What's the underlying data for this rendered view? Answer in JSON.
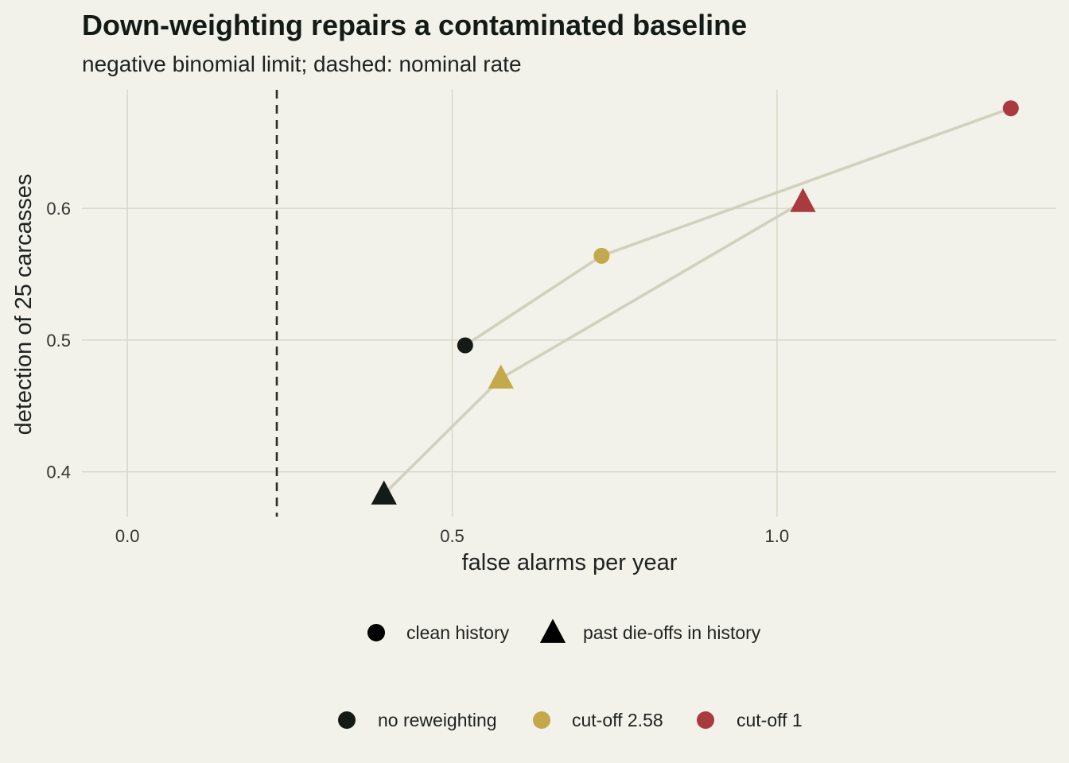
{
  "chart_data": {
    "type": "scatter",
    "title": "Down-weighting repairs a contaminated baseline",
    "subtitle": "negative binomial limit; dashed: nominal rate",
    "xlabel": "false alarms per year",
    "ylabel": "detection of 25 carcasses",
    "xlim": [
      -0.07,
      1.43
    ],
    "ylim": [
      0.366,
      0.69
    ],
    "x_ticks": [
      0.0,
      0.5,
      1.0
    ],
    "x_tick_labels": [
      "0.0",
      "0.5",
      "1.0"
    ],
    "y_ticks": [
      0.4,
      0.5,
      0.6
    ],
    "y_tick_labels": [
      "0.4",
      "0.5",
      "0.6"
    ],
    "grid": true,
    "reference_line": {
      "orientation": "vertical",
      "x": 0.23,
      "style": "dashed"
    },
    "series": [
      {
        "name": "clean history",
        "shape": "circle",
        "points": [
          {
            "x": 0.52,
            "y": 0.496,
            "weighting": "no reweighting"
          },
          {
            "x": 0.73,
            "y": 0.564,
            "weighting": "cut-off 2.58"
          },
          {
            "x": 1.36,
            "y": 0.676,
            "weighting": "cut-off 1"
          }
        ]
      },
      {
        "name": "past die-offs in history",
        "shape": "triangle",
        "points": [
          {
            "x": 0.395,
            "y": 0.383,
            "weighting": "no reweighting"
          },
          {
            "x": 0.575,
            "y": 0.471,
            "weighting": "cut-off 2.58"
          },
          {
            "x": 1.04,
            "y": 0.605,
            "weighting": "cut-off 1"
          }
        ]
      }
    ],
    "legends": [
      {
        "placement": "bottom",
        "items": [
          {
            "label": "clean history",
            "shape": "circle"
          },
          {
            "label": "past die-offs in history",
            "shape": "triangle"
          }
        ]
      },
      {
        "placement": "bottom",
        "items": [
          {
            "label": "no reweighting",
            "shape": "circle",
            "color": "#141a16"
          },
          {
            "label": "cut-off 2.58",
            "shape": "circle",
            "color": "#c4a94a"
          },
          {
            "label": "cut-off 1",
            "shape": "circle",
            "color": "#a93b3e"
          }
        ]
      }
    ]
  },
  "colors": {
    "background": "#f2f1ea",
    "grid": "#d6d6c6",
    "path_line": "#d0d1bf",
    "reference_line": "#2a2d2b",
    "no reweighting": "#141a16",
    "cut-off 2.58": "#c4a94a",
    "cut-off 1": "#a93b3e"
  }
}
